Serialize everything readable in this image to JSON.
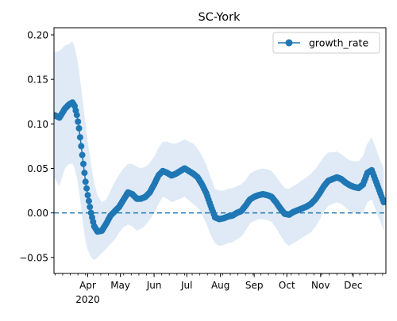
{
  "chart_data": {
    "type": "line",
    "title": "SC-York",
    "legend": {
      "label": "growth_rate",
      "placement": "top-right"
    },
    "colors": {
      "series": "#1f77b4",
      "band": "#dfeaf6"
    },
    "ylim": [
      -0.068,
      0.208
    ],
    "xlim": [
      "2020-03-01",
      "2020-12-31"
    ],
    "y_ticks": [
      {
        "value": 0.2,
        "label": "0.20"
      },
      {
        "value": 0.15,
        "label": "0.15"
      },
      {
        "value": 0.1,
        "label": "0.10"
      },
      {
        "value": 0.05,
        "label": "0.05"
      },
      {
        "value": 0.0,
        "label": "0.00"
      },
      {
        "value": -0.05,
        "label": "−0.05"
      }
    ],
    "x_ticks": [
      {
        "date": "2020-04-01",
        "label": "Apr"
      },
      {
        "date": "2020-05-01",
        "label": "May"
      },
      {
        "date": "2020-06-01",
        "label": "Jun"
      },
      {
        "date": "2020-07-01",
        "label": "Jul"
      },
      {
        "date": "2020-08-01",
        "label": "Aug"
      },
      {
        "date": "2020-09-01",
        "label": "Sep"
      },
      {
        "date": "2020-10-01",
        "label": "Oct"
      },
      {
        "date": "2020-11-01",
        "label": "Nov"
      },
      {
        "date": "2020-12-01",
        "label": "Dec"
      }
    ],
    "year_label": "2020",
    "reference_line": {
      "y": 0.0,
      "style": "dashed"
    },
    "series": [
      {
        "name": "growth_rate",
        "x": [
          "2020-03-01",
          "2020-03-06",
          "2020-03-11",
          "2020-03-15",
          "2020-03-18",
          "2020-03-20",
          "2020-03-22",
          "2020-03-24",
          "2020-03-26",
          "2020-03-28",
          "2020-03-30",
          "2020-04-01",
          "2020-04-04",
          "2020-04-07",
          "2020-04-10",
          "2020-04-14",
          "2020-04-18",
          "2020-04-22",
          "2020-04-26",
          "2020-04-30",
          "2020-05-04",
          "2020-05-08",
          "2020-05-12",
          "2020-05-16",
          "2020-05-20",
          "2020-05-24",
          "2020-05-28",
          "2020-06-01",
          "2020-06-05",
          "2020-06-09",
          "2020-06-13",
          "2020-06-17",
          "2020-06-21",
          "2020-06-25",
          "2020-06-29",
          "2020-07-03",
          "2020-07-07",
          "2020-07-11",
          "2020-07-15",
          "2020-07-19",
          "2020-07-23",
          "2020-07-27",
          "2020-07-31",
          "2020-08-04",
          "2020-08-08",
          "2020-08-12",
          "2020-08-16",
          "2020-08-20",
          "2020-08-24",
          "2020-08-28",
          "2020-09-01",
          "2020-09-05",
          "2020-09-09",
          "2020-09-13",
          "2020-09-17",
          "2020-09-21",
          "2020-09-25",
          "2020-09-29",
          "2020-10-03",
          "2020-10-07",
          "2020-10-11",
          "2020-10-15",
          "2020-10-19",
          "2020-10-23",
          "2020-10-27",
          "2020-10-31",
          "2020-11-04",
          "2020-11-08",
          "2020-11-12",
          "2020-11-16",
          "2020-11-20",
          "2020-11-24",
          "2020-11-28",
          "2020-12-02",
          "2020-12-06",
          "2020-12-10",
          "2020-12-14",
          "2020-12-18",
          "2020-12-22",
          "2020-12-26",
          "2020-12-29"
        ],
        "y": [
          0.11,
          0.107,
          0.117,
          0.122,
          0.124,
          0.12,
          0.11,
          0.095,
          0.075,
          0.055,
          0.035,
          0.02,
          0.0,
          -0.015,
          -0.021,
          -0.02,
          -0.012,
          -0.003,
          0.002,
          0.007,
          0.015,
          0.023,
          0.021,
          0.016,
          0.016,
          0.018,
          0.023,
          0.032,
          0.042,
          0.047,
          0.045,
          0.042,
          0.044,
          0.047,
          0.05,
          0.047,
          0.044,
          0.04,
          0.032,
          0.022,
          0.008,
          -0.005,
          -0.007,
          -0.006,
          -0.004,
          -0.003,
          0.0,
          0.002,
          0.008,
          0.015,
          0.018,
          0.02,
          0.021,
          0.02,
          0.018,
          0.012,
          0.005,
          -0.001,
          -0.002,
          0.001,
          0.003,
          0.005,
          0.007,
          0.01,
          0.015,
          0.022,
          0.03,
          0.036,
          0.038,
          0.04,
          0.038,
          0.034,
          0.031,
          0.029,
          0.028,
          0.032,
          0.045,
          0.048,
          0.035,
          0.022,
          0.012
        ],
        "band_low": [
          0.04,
          0.03,
          0.05,
          0.055,
          0.055,
          0.05,
          0.04,
          0.025,
          0.005,
          -0.015,
          -0.032,
          -0.042,
          -0.05,
          -0.053,
          -0.05,
          -0.045,
          -0.04,
          -0.035,
          -0.03,
          -0.022,
          -0.016,
          -0.013,
          -0.015,
          -0.02,
          -0.018,
          -0.014,
          -0.008,
          0.0,
          0.01,
          0.018,
          0.016,
          0.012,
          0.014,
          0.016,
          0.018,
          0.014,
          0.01,
          0.006,
          -0.002,
          -0.012,
          -0.025,
          -0.034,
          -0.037,
          -0.036,
          -0.034,
          -0.033,
          -0.03,
          -0.027,
          -0.02,
          -0.012,
          -0.009,
          -0.007,
          -0.007,
          -0.008,
          -0.01,
          -0.017,
          -0.025,
          -0.033,
          -0.037,
          -0.034,
          -0.031,
          -0.028,
          -0.025,
          -0.022,
          -0.016,
          -0.008,
          0.001,
          0.008,
          0.01,
          0.012,
          0.01,
          0.006,
          0.002,
          0.0,
          -0.002,
          0.0,
          0.012,
          0.015,
          0.002,
          -0.01,
          -0.02
        ],
        "band_high": [
          0.18,
          0.182,
          0.188,
          0.19,
          0.193,
          0.186,
          0.175,
          0.16,
          0.14,
          0.12,
          0.1,
          0.08,
          0.055,
          0.033,
          0.02,
          0.012,
          0.015,
          0.025,
          0.035,
          0.043,
          0.05,
          0.055,
          0.055,
          0.052,
          0.05,
          0.052,
          0.056,
          0.063,
          0.073,
          0.08,
          0.08,
          0.078,
          0.078,
          0.08,
          0.083,
          0.08,
          0.078,
          0.072,
          0.064,
          0.054,
          0.04,
          0.027,
          0.025,
          0.025,
          0.027,
          0.028,
          0.03,
          0.032,
          0.037,
          0.044,
          0.047,
          0.049,
          0.05,
          0.049,
          0.047,
          0.041,
          0.034,
          0.028,
          0.027,
          0.03,
          0.033,
          0.037,
          0.04,
          0.044,
          0.049,
          0.056,
          0.063,
          0.068,
          0.068,
          0.069,
          0.066,
          0.062,
          0.059,
          0.058,
          0.058,
          0.064,
          0.078,
          0.085,
          0.072,
          0.058,
          0.05
        ]
      }
    ]
  }
}
